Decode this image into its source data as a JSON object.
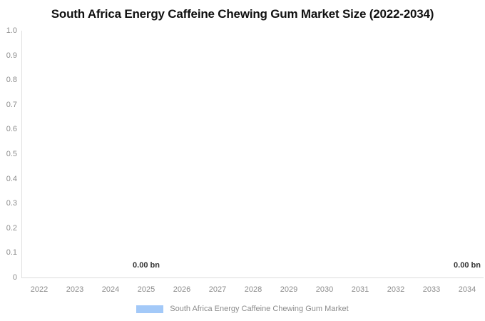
{
  "title": "South Africa Energy Caffeine Chewing Gum Market Size (2022-2034)",
  "chart_data": {
    "type": "bar",
    "categories": [
      "2022",
      "2023",
      "2024",
      "2025",
      "2026",
      "2027",
      "2028",
      "2029",
      "2030",
      "2031",
      "2032",
      "2033",
      "2034"
    ],
    "series": [
      {
        "name": "South Africa Energy Caffeine Chewing Gum Market",
        "values": [
          0,
          0,
          0,
          0,
          0,
          0,
          0,
          0,
          0,
          0,
          0,
          0,
          0
        ]
      }
    ],
    "data_labels": [
      {
        "category": "2025",
        "text": "0.00 bn"
      },
      {
        "category": "2034",
        "text": "0.00 bn"
      }
    ],
    "value_unit": "bn",
    "xlabel": "",
    "ylabel": "",
    "ylim": [
      0,
      1.0
    ],
    "yticks": [
      "1.0",
      "0.9",
      "0.8",
      "0.7",
      "0.6",
      "0.5",
      "0.4",
      "0.3",
      "0.2",
      "0.1",
      "0"
    ],
    "grid": false,
    "legend_position": "bottom-center"
  },
  "legend": {
    "label": "South Africa Energy Caffeine Chewing Gum Market"
  },
  "colors": {
    "bar": "#a3c9f8",
    "title_text": "#111111",
    "axis_label_text": "#8c8c8c",
    "data_label_text": "#333333",
    "axis_line": "#dddddd",
    "background": "#ffffff"
  }
}
